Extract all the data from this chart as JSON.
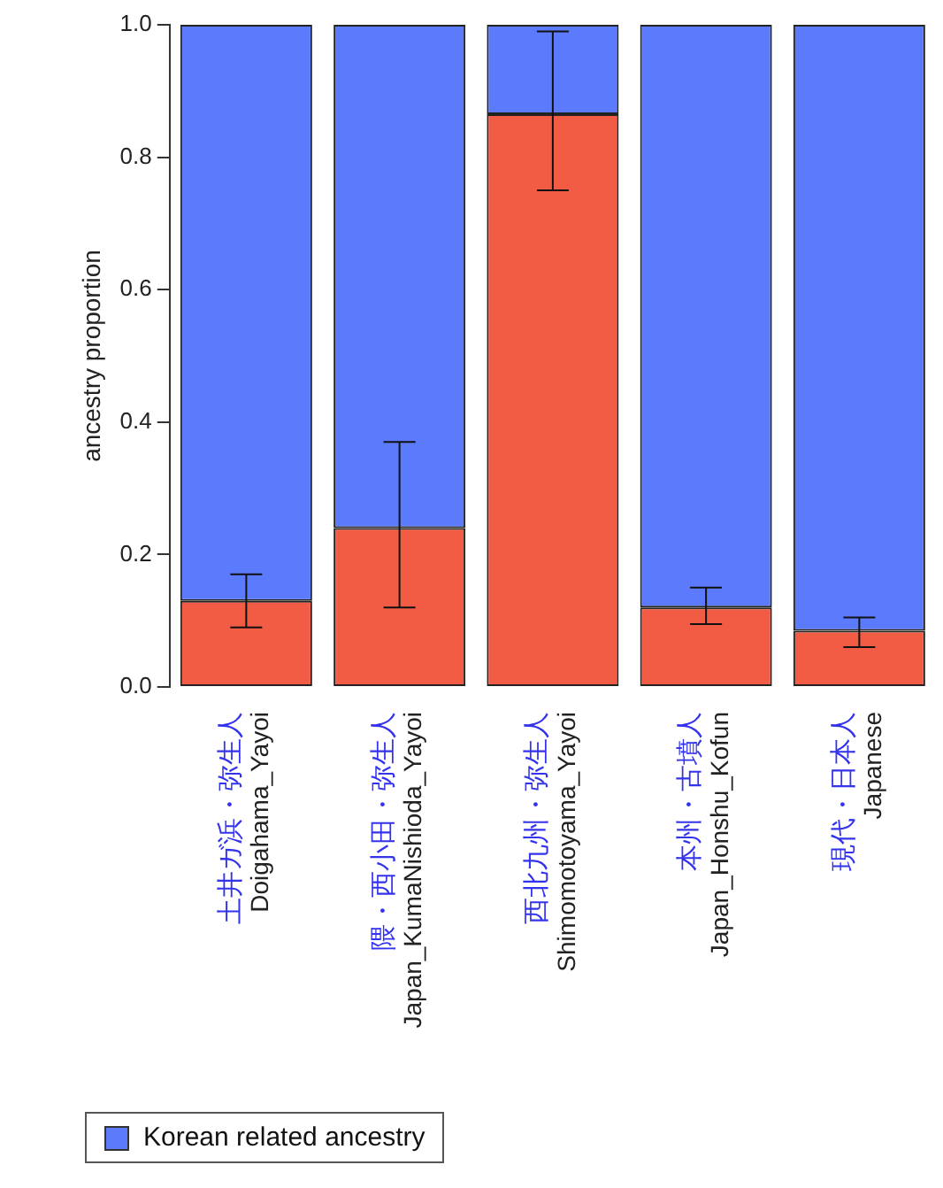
{
  "chart_data": {
    "type": "bar",
    "stacked": true,
    "ylabel": "ancestry proportion",
    "categories": [
      "土井ガ浜・弥生人\nDoigahama_Yayoi",
      "隈・西小田・弥生人\nJapan_KumaNishioda_Yayoi",
      "西北九州・弥生人\nShimomotoyama_Yayoi",
      "本州・古墳人\nJapan_Honshu_Kofun",
      "現代・日本人\nJapanese"
    ],
    "series": [
      {
        "color": "#f25c45",
        "values": [
          0.13,
          0.24,
          0.865,
          0.12,
          0.085
        ],
        "errors": [
          [
            0.09,
            0.17
          ],
          [
            0.12,
            0.37
          ],
          [
            0.75,
            0.99
          ],
          [
            0.095,
            0.15
          ],
          [
            0.06,
            0.105
          ]
        ]
      },
      {
        "name": "Korean related ancestry",
        "color": "#5b7bfc",
        "values": [
          0.87,
          0.76,
          0.135,
          0.88,
          0.915
        ]
      }
    ],
    "ylim": [
      0,
      1
    ],
    "yticks": [
      {
        "value": 0,
        "label": "0.0"
      },
      0.2,
      0.4,
      0.6,
      0.8,
      {
        "value": 1,
        "label": "1.0"
      }
    ],
    "grid": false,
    "legend": "bottom"
  }
}
